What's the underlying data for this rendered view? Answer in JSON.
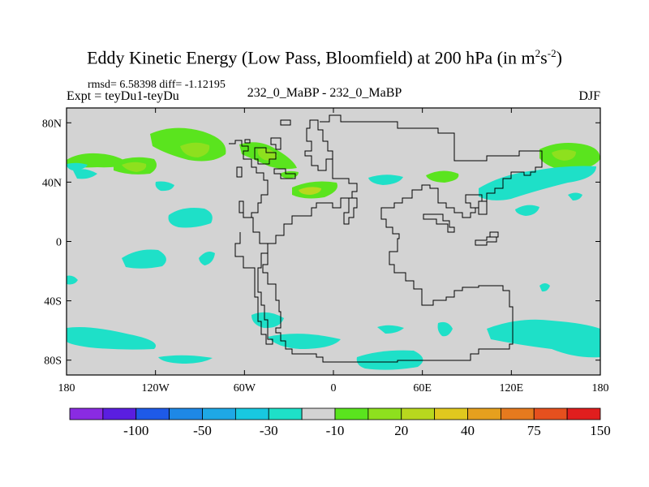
{
  "title": {
    "main": "Eddy Kinetic Energy (Low Pass, Bloomfield) at 200 hPa (in m",
    "sup1": "2",
    "mid": "s",
    "sup2": "-2",
    "close": ")"
  },
  "stats": "rmsd= 6.58398 diff= -1.12195",
  "expt": "Expt = teyDu1-teyDu",
  "case_label": "232_0_MaBP - 232_0_MaBP",
  "season": "DJF",
  "colors": {
    "map_bg": "#d3d3d3",
    "land_outline": "#000000",
    "palette": [
      "#8a2be2",
      "#5a1ee0",
      "#1e5ae8",
      "#1e88e6",
      "#1ea8e6",
      "#18c8e0",
      "#1ee0c8",
      "#d3d3d3",
      "#5ae41e",
      "#8ee01e",
      "#b8d81e",
      "#e0c81e",
      "#e6a01e",
      "#e67a1e",
      "#e6501e",
      "#e01e1e"
    ]
  },
  "chart_data": {
    "type": "heatmap",
    "title": "Eddy Kinetic Energy (Low Pass, Bloomfield) at 200 hPa (in m^2 s^-2)",
    "variable": "EKE difference",
    "level_hPa": 200,
    "units": "m2 s-2",
    "rmsd": 6.58398,
    "diff": -1.12195,
    "x_axis": {
      "range": [
        -180,
        180
      ],
      "ticks": [
        -180,
        -120,
        -60,
        0,
        60,
        120,
        180
      ],
      "tick_labels": [
        "180",
        "120W",
        "60W",
        "0",
        "60E",
        "120E",
        "180"
      ]
    },
    "y_axis": {
      "range": [
        -90,
        90
      ],
      "ticks": [
        -80,
        -40,
        0,
        40,
        80
      ],
      "tick_labels": [
        "80S",
        "40S",
        "0",
        "40N",
        "80N"
      ]
    },
    "colorbar": {
      "label_values": [
        "-100",
        "-50",
        "-30",
        "-10",
        "20",
        "40",
        "75",
        "150"
      ],
      "n_colors": 16
    },
    "regions": [
      {
        "name": "N Pacific west",
        "sign": "positive",
        "level": 20,
        "lon": -165,
        "lat": 52
      },
      {
        "name": "N Pacific mid",
        "sign": "positive",
        "level": 30,
        "lon": -140,
        "lat": 49
      },
      {
        "name": "N America jet",
        "sign": "positive",
        "level": 35,
        "lon": -92,
        "lat": 62
      },
      {
        "name": "N Atlantic",
        "sign": "positive",
        "level": 35,
        "lon": -53,
        "lat": 60
      },
      {
        "name": "Mediterranean",
        "sign": "positive",
        "level": 35,
        "lon": -17,
        "lat": 33
      },
      {
        "name": "Central Asia",
        "sign": "positive",
        "level": 20,
        "lon": 75,
        "lat": 42
      },
      {
        "name": "NW Pacific",
        "sign": "positive",
        "level": 30,
        "lon": 160,
        "lat": 56
      },
      {
        "name": "Tropical Pacific",
        "sign": "negative",
        "level": -10,
        "lon": -95,
        "lat": 12
      },
      {
        "name": "Southern Ocean",
        "sign": "negative",
        "level": -10,
        "lon": 140,
        "lat": -70
      }
    ]
  }
}
